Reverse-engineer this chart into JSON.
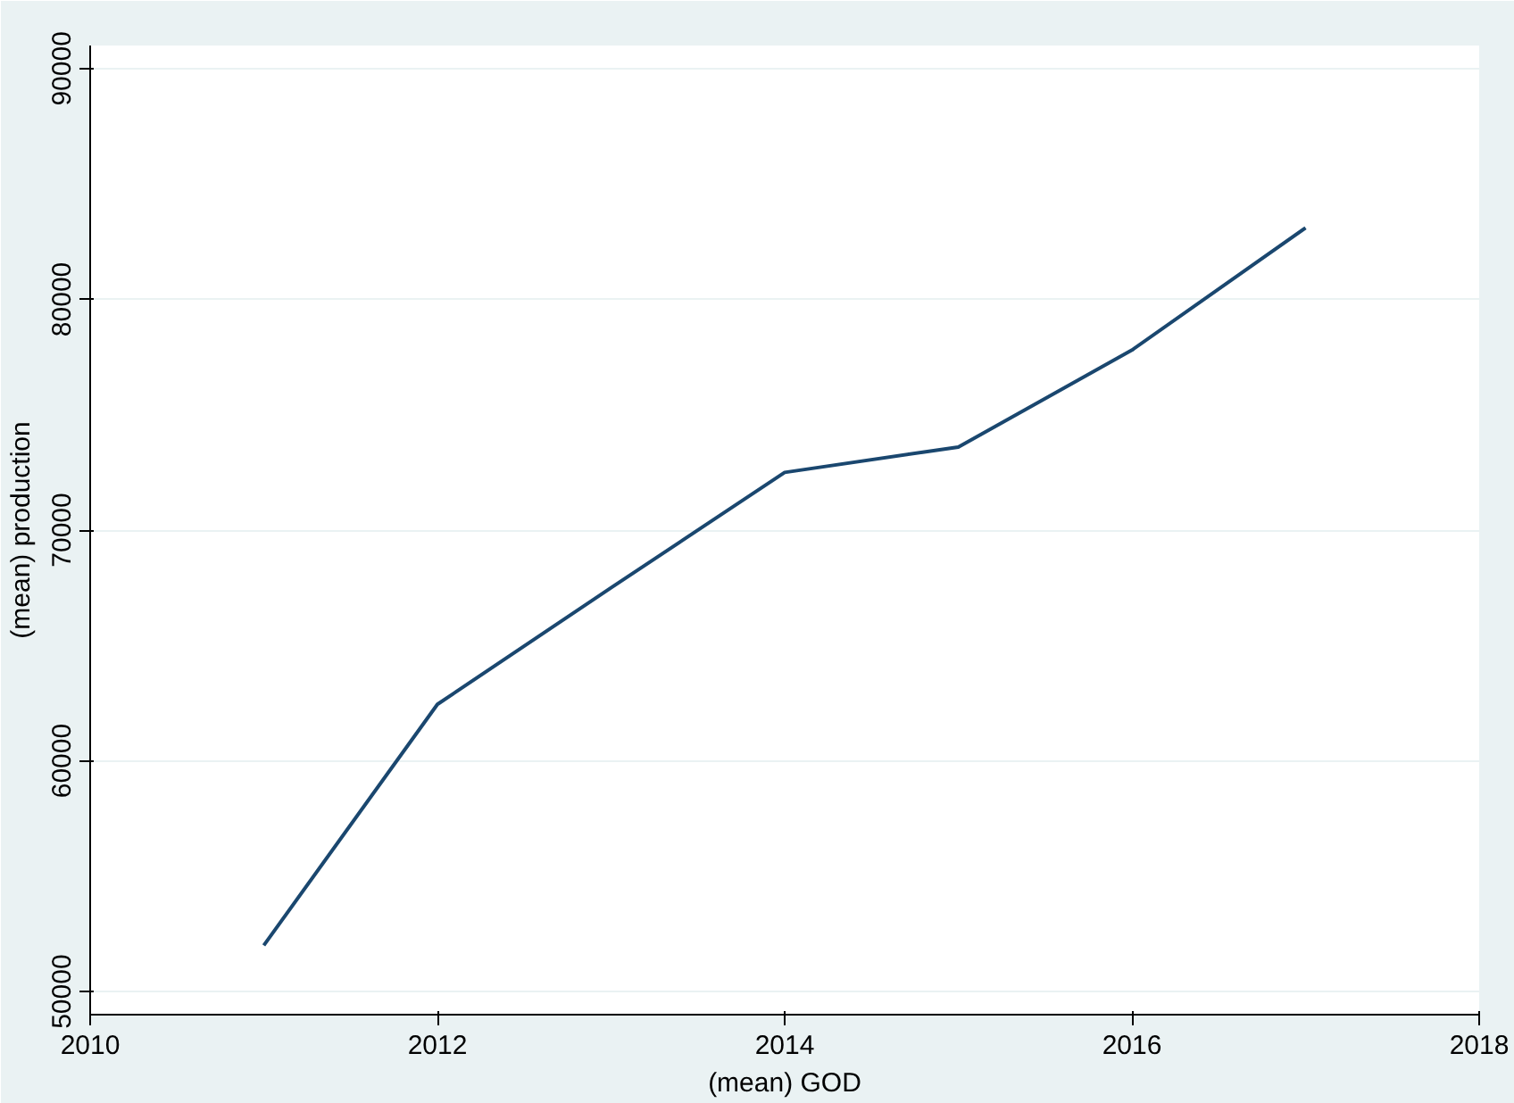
{
  "chart_data": {
    "type": "line",
    "xlabel": "(mean) GOD",
    "ylabel": "(mean) production",
    "x": [
      2011,
      2012,
      2013,
      2014,
      2015,
      2016,
      2017
    ],
    "series": [
      {
        "color": "#1a476f",
        "values": [
          52000,
          62450,
          67500,
          72500,
          73600,
          77800,
          83100
        ]
      }
    ],
    "xlim": [
      2010,
      2018
    ],
    "xticks": [
      2010,
      2012,
      2014,
      2016,
      2018
    ],
    "ylim": [
      49000,
      91000
    ],
    "yticks": [
      50000,
      60000,
      70000,
      80000,
      90000
    ],
    "grid": "y",
    "marker": "none",
    "line_style": "solid"
  }
}
